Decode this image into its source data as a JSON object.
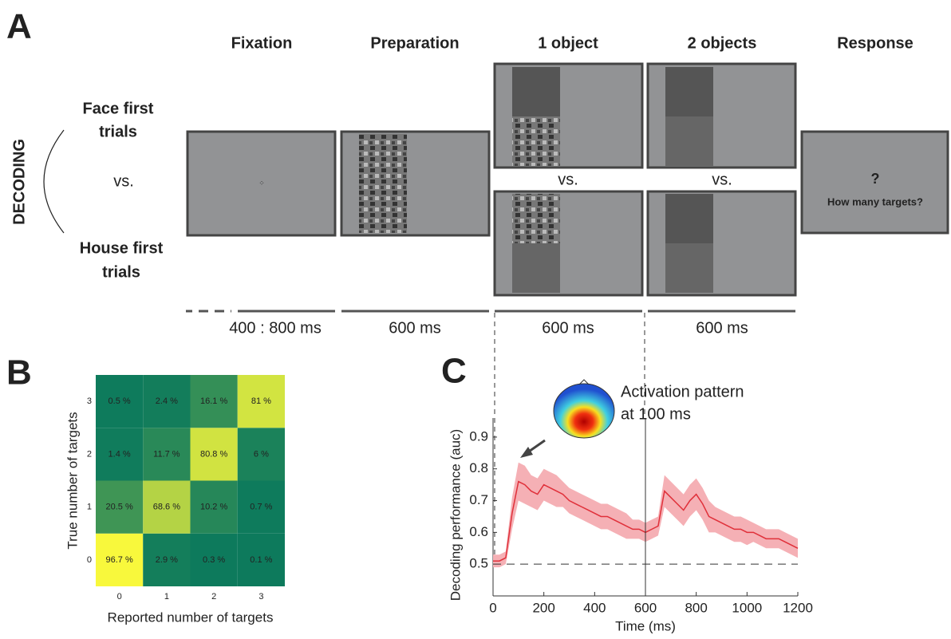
{
  "panel_a": {
    "label": "A",
    "headers": [
      "Fixation",
      "Preparation",
      "1 object",
      "2 objects",
      "Response"
    ],
    "side_title": "DECODING",
    "face_first": [
      "Face first",
      "trials"
    ],
    "versus": "vs.",
    "house_first": [
      "House first",
      "trials"
    ],
    "screen_versus": [
      "vs.",
      "vs."
    ],
    "response_mark": "?",
    "response_question": "How many targets?",
    "durations": [
      "400 : 800 ms",
      "600 ms",
      "600 ms",
      "600 ms"
    ]
  },
  "panel_b_label": "B",
  "panel_c_label": "C",
  "chart_data": [
    {
      "type": "heatmap",
      "x_categories": [
        0,
        1,
        2,
        3
      ],
      "y_categories": [
        0,
        1,
        2,
        3
      ],
      "values": [
        [
          96.7,
          2.9,
          0.3,
          0.1
        ],
        [
          20.5,
          68.6,
          10.2,
          0.7
        ],
        [
          1.4,
          11.7,
          80.8,
          6
        ],
        [
          0.5,
          2.4,
          16.1,
          81
        ]
      ],
      "value_labels": [
        [
          "96.7 %",
          "2.9 %",
          "0.3 %",
          "0.1 %"
        ],
        [
          "20.5 %",
          "68.6 %",
          "10.2 %",
          "0.7 %"
        ],
        [
          "1.4 %",
          "11.7 %",
          "80.8 %",
          "6 %"
        ],
        [
          "0.5 %",
          "2.4 %",
          "16.1 %",
          "81 %"
        ]
      ],
      "colormap": [
        "#0d7a5c",
        "#f8f83c"
      ],
      "x_label": "Reported number of targets",
      "y_label": "True number of targets"
    },
    {
      "type": "line",
      "x": [
        0,
        25,
        50,
        75,
        100,
        125,
        150,
        175,
        200,
        225,
        250,
        275,
        300,
        325,
        350,
        375,
        400,
        425,
        450,
        475,
        500,
        525,
        550,
        575,
        600,
        625,
        650,
        675,
        700,
        725,
        750,
        775,
        800,
        825,
        850,
        875,
        900,
        925,
        950,
        975,
        1000,
        1025,
        1050,
        1075,
        1100,
        1125,
        1150,
        1175,
        1200
      ],
      "series": [
        {
          "color": "#e0303a",
          "band_color": "#f5b0b5",
          "values": [
            0.51,
            0.51,
            0.52,
            0.66,
            0.76,
            0.75,
            0.73,
            0.72,
            0.75,
            0.74,
            0.73,
            0.72,
            0.7,
            0.69,
            0.68,
            0.67,
            0.66,
            0.65,
            0.65,
            0.64,
            0.63,
            0.62,
            0.61,
            0.61,
            0.6,
            0.61,
            0.62,
            0.73,
            0.71,
            0.69,
            0.67,
            0.7,
            0.72,
            0.69,
            0.65,
            0.64,
            0.63,
            0.62,
            0.61,
            0.61,
            0.6,
            0.6,
            0.59,
            0.58,
            0.58,
            0.58,
            0.57,
            0.56,
            0.55
          ],
          "error": [
            0.02,
            0.02,
            0.02,
            0.05,
            0.06,
            0.06,
            0.05,
            0.05,
            0.05,
            0.05,
            0.05,
            0.04,
            0.04,
            0.04,
            0.04,
            0.04,
            0.04,
            0.04,
            0.04,
            0.04,
            0.04,
            0.04,
            0.03,
            0.03,
            0.03,
            0.03,
            0.03,
            0.05,
            0.05,
            0.05,
            0.05,
            0.05,
            0.05,
            0.05,
            0.05,
            0.04,
            0.04,
            0.04,
            0.04,
            0.04,
            0.04,
            0.03,
            0.03,
            0.03,
            0.03,
            0.03,
            0.03,
            0.03,
            0.03
          ]
        }
      ],
      "xlim": [
        0,
        1200
      ],
      "xticks": [
        0,
        200,
        400,
        600,
        800,
        1000,
        1200
      ],
      "ylim": [
        0.4,
        0.96
      ],
      "yticks": [
        0.5,
        0.6,
        0.7,
        0.8,
        0.9
      ],
      "hline": 0.5,
      "vline": 600,
      "x_label": "Time (ms)",
      "y_label": "Decoding performance (auc)",
      "annotation": [
        "Activation pattern",
        "at 100 ms"
      ]
    }
  ]
}
